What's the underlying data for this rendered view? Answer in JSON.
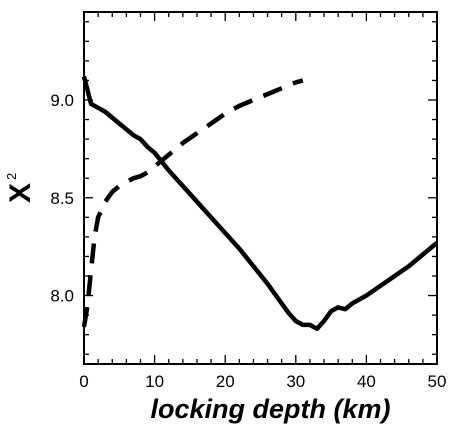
{
  "chart_data": {
    "type": "line",
    "title": "",
    "xlabel": "locking depth (km)",
    "ylabel": {
      "base": "X",
      "superscript": "2"
    },
    "xlim": [
      0,
      50
    ],
    "ylim": [
      7.65,
      9.45
    ],
    "grid": false,
    "x_ticks": [
      0,
      10,
      20,
      30,
      40,
      50
    ],
    "x_tick_labels": [
      "0",
      "10",
      "20",
      "30",
      "40",
      "50"
    ],
    "y_ticks": [
      8.0,
      8.5,
      9.0
    ],
    "y_tick_labels": [
      "8.0",
      "8.5",
      "9.0"
    ],
    "series": [
      {
        "style": "solid",
        "color": "#000000",
        "x": [
          0,
          1,
          2,
          3,
          4,
          5,
          6,
          7,
          8,
          9,
          10,
          12,
          14,
          16,
          18,
          20,
          22,
          24,
          26,
          28,
          29,
          30,
          31,
          32,
          33,
          34,
          35,
          36,
          37,
          38,
          40,
          42,
          44,
          46,
          48,
          50
        ],
        "y": [
          9.12,
          8.98,
          8.96,
          8.94,
          8.91,
          8.88,
          8.85,
          8.82,
          8.8,
          8.76,
          8.73,
          8.64,
          8.56,
          8.48,
          8.4,
          8.32,
          8.24,
          8.15,
          8.06,
          7.96,
          7.91,
          7.87,
          7.85,
          7.85,
          7.83,
          7.87,
          7.92,
          7.94,
          7.93,
          7.96,
          8.0,
          8.05,
          8.1,
          8.15,
          8.21,
          8.27
        ]
      },
      {
        "style": "dashed",
        "color": "#000000",
        "x": [
          0,
          0.5,
          1,
          1.5,
          2,
          3,
          4,
          5,
          6,
          7,
          8,
          9,
          10,
          12,
          14,
          16,
          18,
          20,
          22,
          24,
          26,
          28,
          30,
          31
        ],
        "y": [
          7.84,
          7.95,
          8.13,
          8.3,
          8.4,
          8.48,
          8.53,
          8.56,
          8.58,
          8.6,
          8.61,
          8.63,
          8.66,
          8.72,
          8.78,
          8.83,
          8.88,
          8.93,
          8.97,
          9.0,
          9.03,
          9.06,
          9.09,
          9.1
        ]
      }
    ]
  }
}
